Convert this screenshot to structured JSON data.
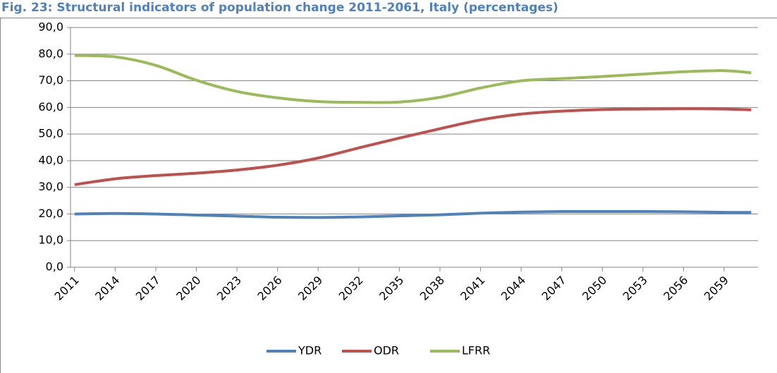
{
  "chart_data": {
    "type": "line",
    "title": "Fig. 23: Structural indicators of population change 2011-2061, Italy (percentages)",
    "x": [
      2011,
      2014,
      2017,
      2020,
      2023,
      2026,
      2029,
      2032,
      2035,
      2038,
      2041,
      2044,
      2047,
      2050,
      2053,
      2056,
      2059,
      2061
    ],
    "xlim": [
      2010.7,
      2061.5
    ],
    "xticks": [
      2011,
      2014,
      2017,
      2020,
      2023,
      2026,
      2029,
      2032,
      2035,
      2038,
      2041,
      2044,
      2047,
      2050,
      2053,
      2056,
      2059
    ],
    "ylim": [
      0,
      90
    ],
    "yticks": [
      {
        "value": 0,
        "label": "0,0"
      },
      {
        "value": 10,
        "label": "10,0"
      },
      {
        "value": 20,
        "label": "20,0"
      },
      {
        "value": 30,
        "label": "30,0"
      },
      {
        "value": 40,
        "label": "40,0"
      },
      {
        "value": 50,
        "label": "50,0"
      },
      {
        "value": 60,
        "label": "60,0"
      },
      {
        "value": 70,
        "label": "70,0"
      },
      {
        "value": 80,
        "label": "80,0"
      },
      {
        "value": 90,
        "label": "90,0"
      }
    ],
    "grid": true,
    "legend": "bottom",
    "series": [
      {
        "name": "YDR",
        "color": "#4f81bd",
        "values": [
          20.0,
          20.2,
          20.0,
          19.6,
          19.2,
          18.8,
          18.7,
          18.9,
          19.3,
          19.7,
          20.3,
          20.7,
          20.9,
          20.9,
          20.9,
          20.8,
          20.6,
          20.6
        ]
      },
      {
        "name": "ODR",
        "color": "#c0504d",
        "values": [
          31.0,
          33.2,
          34.4,
          35.3,
          36.5,
          38.3,
          41.0,
          44.8,
          48.5,
          52.0,
          55.3,
          57.5,
          58.6,
          59.2,
          59.4,
          59.5,
          59.4,
          59.1
        ]
      },
      {
        "name": "LFRR",
        "color": "#9bbb59",
        "values": [
          79.5,
          79.0,
          75.8,
          70.2,
          66.0,
          63.6,
          62.2,
          61.9,
          62.0,
          63.8,
          67.3,
          70.0,
          70.8,
          71.6,
          72.5,
          73.4,
          73.8,
          73.0
        ]
      }
    ]
  }
}
